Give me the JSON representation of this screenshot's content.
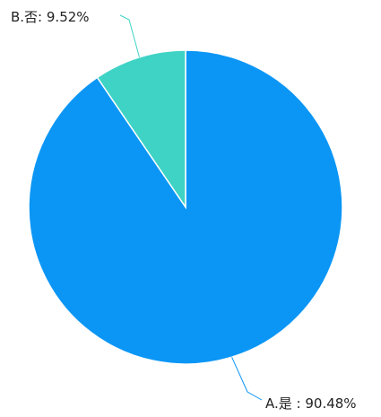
{
  "chart_data": {
    "type": "pie",
    "slices": [
      {
        "label": "A.是",
        "value": 90.48,
        "display": "A.是 : 90.48%",
        "color": "#0b96f5"
      },
      {
        "label": "B.否",
        "value": 9.52,
        "display": "B.否: 9.52%",
        "color": "#3ed3c5"
      }
    ],
    "colors": {
      "slice_border": "#ffffff",
      "leader_line_a": "#0b96f5",
      "leader_line_b": "#3ed3c5"
    }
  }
}
